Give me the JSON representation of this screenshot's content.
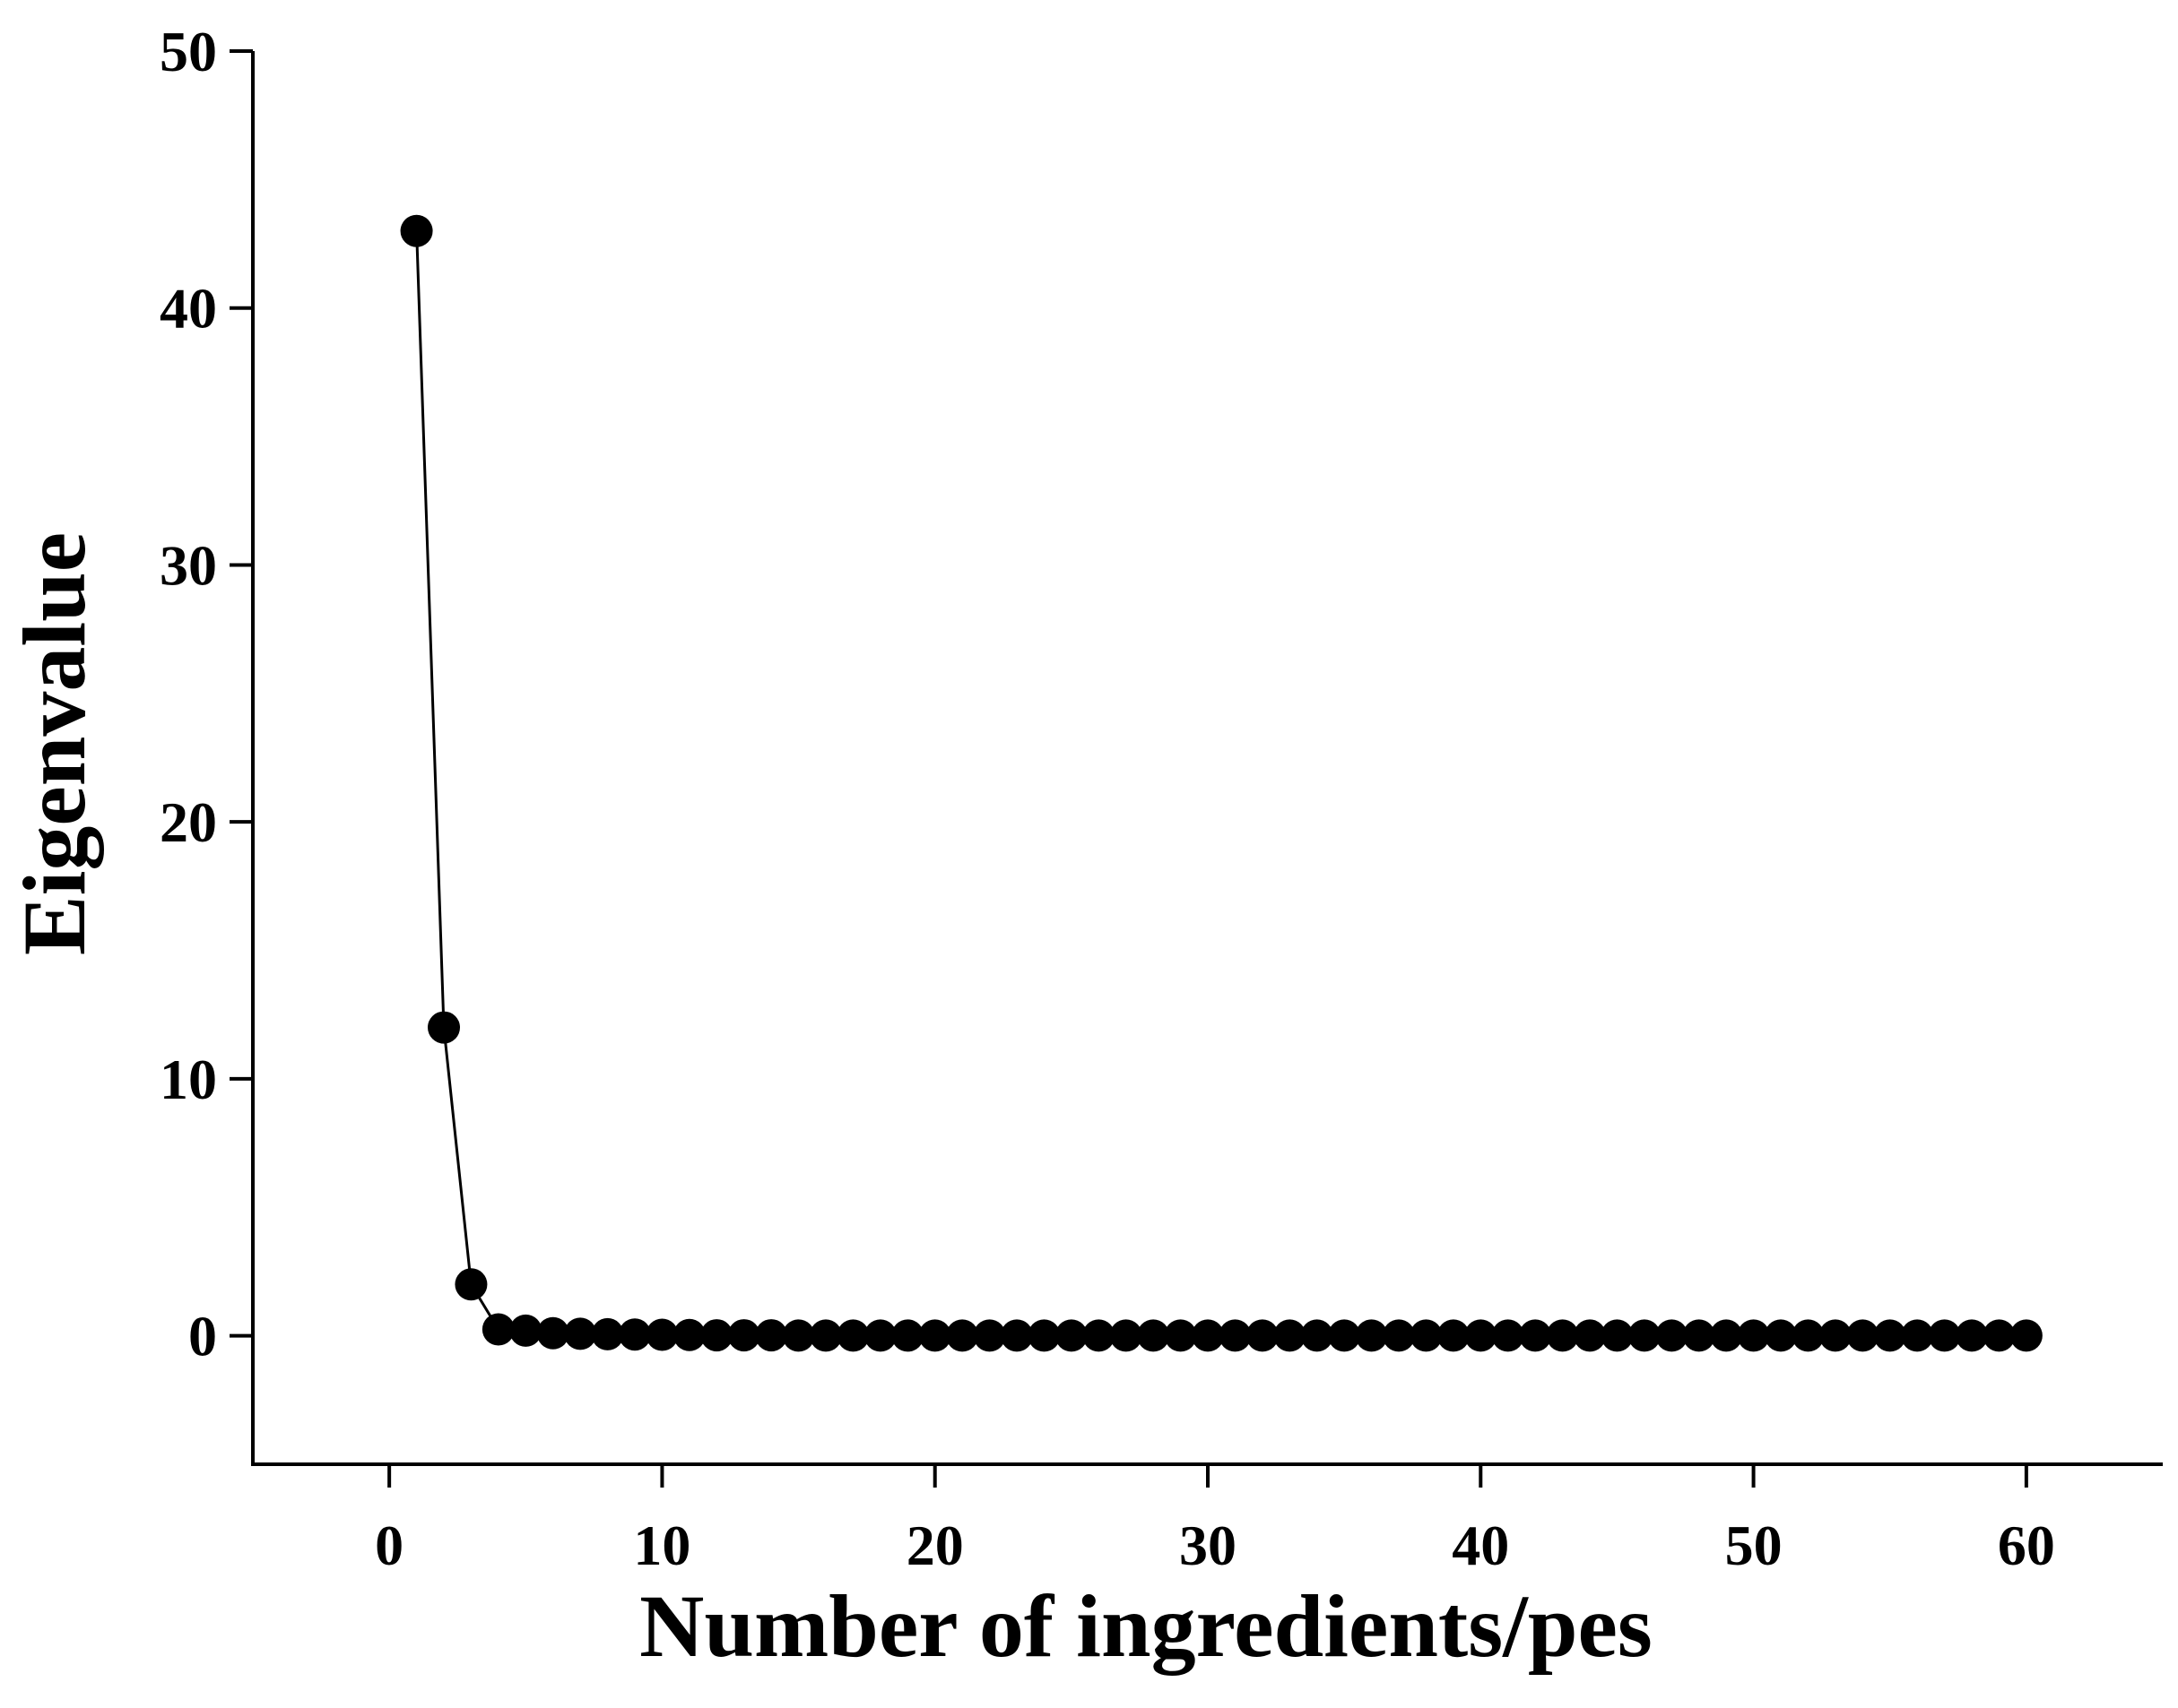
{
  "chart_data": {
    "type": "line",
    "xlabel": "Number of ingredients/pes",
    "ylabel": "Eigenvalue",
    "xlim": [
      -5,
      65
    ],
    "ylim": [
      -5,
      50
    ],
    "xticks": [
      0,
      10,
      20,
      30,
      40,
      50,
      60
    ],
    "yticks": [
      0,
      10,
      20,
      30,
      40,
      50
    ],
    "xtick_labels": [
      "0",
      "10",
      "20",
      "30",
      "40",
      "50",
      "60"
    ],
    "ytick_labels": [
      "0",
      "10",
      "20",
      "30",
      "40",
      "50"
    ],
    "grid": false,
    "legend": "none",
    "marker": "filled-circle",
    "colors": {
      "line": "#000000",
      "marker": "#000000"
    },
    "series": [
      {
        "x": [
          1,
          2,
          3,
          4,
          5,
          6,
          7,
          8,
          9,
          10,
          11,
          12,
          13,
          14,
          15,
          16,
          17,
          18,
          19,
          20,
          21,
          22,
          23,
          24,
          25,
          26,
          27,
          28,
          29,
          30,
          31,
          32,
          33,
          34,
          35,
          36,
          37,
          38,
          39,
          40,
          41,
          42,
          43,
          44,
          45,
          46,
          47,
          48,
          49,
          50,
          51,
          52,
          53,
          54,
          55,
          56,
          57,
          58,
          59,
          60
        ],
        "y": [
          43.0,
          12.0,
          2.0,
          0.25,
          0.2,
          0.1,
          0.08,
          0.06,
          0.05,
          0.04,
          0.03,
          0.02,
          0.02,
          0.02,
          0.01,
          0.01,
          0.01,
          0.01,
          0.01,
          0.01,
          0.01,
          0.01,
          0.01,
          0.01,
          0.01,
          0.01,
          0.01,
          0.01,
          0.01,
          0.01,
          0.01,
          0.01,
          0.01,
          0.01,
          0.01,
          0.01,
          0.01,
          0.01,
          0.01,
          0.01,
          0.01,
          0.01,
          0.01,
          0.01,
          0.01,
          0.01,
          0.01,
          0.01,
          0.01,
          0.01,
          0.01,
          0.01,
          0.01,
          0.01,
          0.01,
          0.01,
          0.01,
          0.01,
          0.01,
          0.01
        ]
      }
    ]
  }
}
